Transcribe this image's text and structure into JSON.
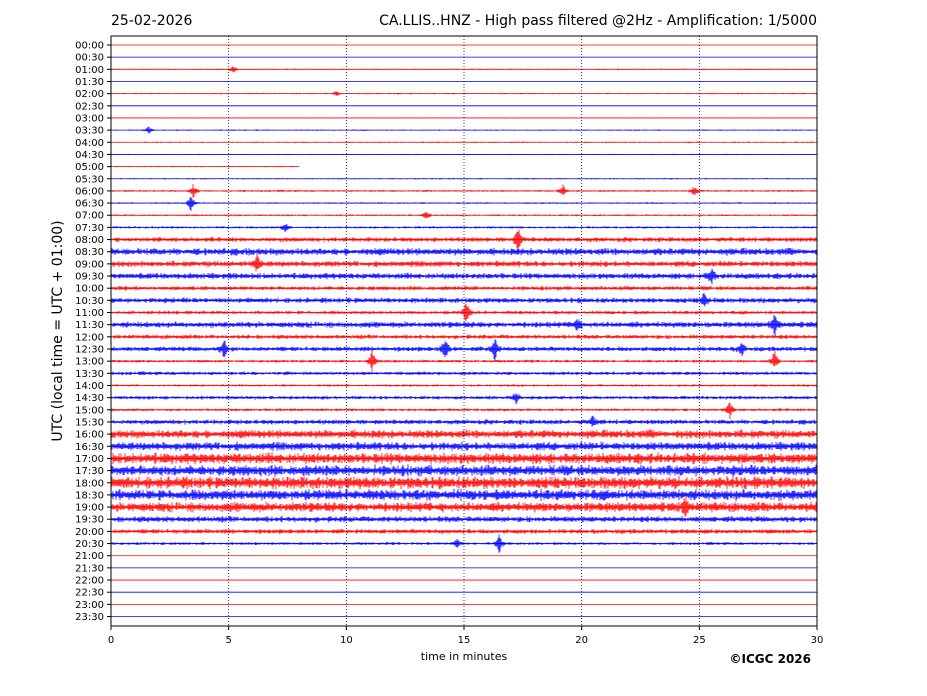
{
  "header": {
    "date": "25-02-2026",
    "title": "CA.LLIS..HNZ - High pass filtered @2Hz - Amplification: 1/5000"
  },
  "footer": {
    "copyright": "©ICGC 2026"
  },
  "colors": {
    "trace_a": "#ff0000",
    "trace_b": "#0000ff",
    "frame": "#000000",
    "grid": "#000080"
  },
  "chart_data": {
    "type": "line",
    "xlabel": "time in minutes",
    "ylabel": "UTC (local time = UTC + 01:00)",
    "xlim": [
      0,
      30
    ],
    "x_ticks": [
      0,
      5,
      10,
      15,
      20,
      25,
      30
    ],
    "x_tick_labels": [
      "0",
      "5",
      "10",
      "15",
      "20",
      "25",
      "30"
    ],
    "vertical_gridlines_minutes": [
      5,
      10,
      15,
      20,
      25
    ],
    "grid": "dotted vertical",
    "row_labels": [
      "00:00",
      "00:30",
      "01:00",
      "01:30",
      "02:00",
      "02:30",
      "03:00",
      "03:30",
      "04:00",
      "04:30",
      "05:00",
      "05:30",
      "06:00",
      "06:30",
      "07:00",
      "07:30",
      "08:00",
      "08:30",
      "09:00",
      "09:30",
      "10:00",
      "10:30",
      "11:00",
      "11:30",
      "12:00",
      "12:30",
      "13:00",
      "13:30",
      "14:00",
      "14:30",
      "15:00",
      "15:30",
      "16:00",
      "16:30",
      "17:00",
      "17:30",
      "18:00",
      "18:30",
      "19:00",
      "19:30",
      "20:00",
      "20:30",
      "21:00",
      "21:30",
      "22:00",
      "22:30",
      "23:00",
      "23:30"
    ],
    "row_colors_cycle": [
      "#ff0000",
      "#0000ff"
    ],
    "activity_level": [
      0.3,
      0.3,
      0.6,
      0.3,
      0.6,
      0.3,
      0.4,
      0.6,
      0.6,
      0.5,
      0.6,
      0.6,
      0.8,
      0.7,
      0.8,
      1,
      2,
      3,
      2.5,
      2.5,
      1.8,
      2.2,
      1.5,
      2.5,
      1.8,
      2,
      1.2,
      1.5,
      1,
      1.5,
      1.2,
      2,
      3.5,
      3.5,
      4.5,
      4.5,
      5,
      4.5,
      4,
      2.5,
      2,
      1.2,
      0.3,
      0.3,
      0.3,
      0.3,
      0.3,
      0.3
    ],
    "data_extent_minutes": [
      0,
      30,
      0,
      30,
      0,
      30,
      0,
      30,
      0,
      30,
      0,
      30,
      0,
      30,
      0,
      30,
      0,
      30,
      0,
      30,
      0,
      8,
      0,
      30,
      0,
      30,
      0,
      30,
      0,
      30,
      0,
      30,
      0,
      30,
      0,
      30,
      0,
      30,
      0,
      30,
      0,
      30,
      0,
      30,
      0,
      30,
      0,
      30,
      0,
      30,
      0,
      30,
      0,
      30,
      0,
      30,
      0,
      30,
      0,
      30,
      0,
      30,
      0,
      30,
      0,
      30,
      0,
      30,
      0,
      30,
      0,
      30,
      0,
      30,
      0,
      30,
      0,
      30,
      0,
      30,
      0,
      30,
      0,
      30,
      0,
      30,
      0,
      30,
      0,
      30,
      0,
      30,
      0,
      30,
      0,
      30,
      0,
      30
    ],
    "transients": [
      {
        "row": 2,
        "minute": 5.2,
        "amp": 4
      },
      {
        "row": 4,
        "minute": 9.6,
        "amp": 3
      },
      {
        "row": 7,
        "minute": 1.6,
        "amp": 4
      },
      {
        "row": 12,
        "minute": 3.5,
        "amp": 8
      },
      {
        "row": 12,
        "minute": 19.2,
        "amp": 6
      },
      {
        "row": 12,
        "minute": 24.8,
        "amp": 6
      },
      {
        "row": 13,
        "minute": 3.4,
        "amp": 10
      },
      {
        "row": 14,
        "minute": 13.4,
        "amp": 5
      },
      {
        "row": 15,
        "minute": 7.4,
        "amp": 5
      },
      {
        "row": 16,
        "minute": 17.3,
        "amp": 14
      },
      {
        "row": 18,
        "minute": 6.2,
        "amp": 10
      },
      {
        "row": 19,
        "minute": 25.5,
        "amp": 9
      },
      {
        "row": 21,
        "minute": 25.2,
        "amp": 8
      },
      {
        "row": 22,
        "minute": 15.1,
        "amp": 12
      },
      {
        "row": 23,
        "minute": 28.2,
        "amp": 12
      },
      {
        "row": 23,
        "minute": 19.8,
        "amp": 8
      },
      {
        "row": 25,
        "minute": 14.2,
        "amp": 14
      },
      {
        "row": 25,
        "minute": 16.3,
        "amp": 12
      },
      {
        "row": 25,
        "minute": 4.8,
        "amp": 10
      },
      {
        "row": 25,
        "minute": 26.8,
        "amp": 8
      },
      {
        "row": 26,
        "minute": 11.1,
        "amp": 12
      },
      {
        "row": 26,
        "minute": 28.2,
        "amp": 12
      },
      {
        "row": 29,
        "minute": 17.2,
        "amp": 6
      },
      {
        "row": 30,
        "minute": 26.3,
        "amp": 9
      },
      {
        "row": 31,
        "minute": 20.5,
        "amp": 6
      },
      {
        "row": 38,
        "minute": 24.4,
        "amp": 10
      },
      {
        "row": 41,
        "minute": 16.5,
        "amp": 10
      },
      {
        "row": 41,
        "minute": 14.7,
        "amp": 5
      }
    ]
  }
}
